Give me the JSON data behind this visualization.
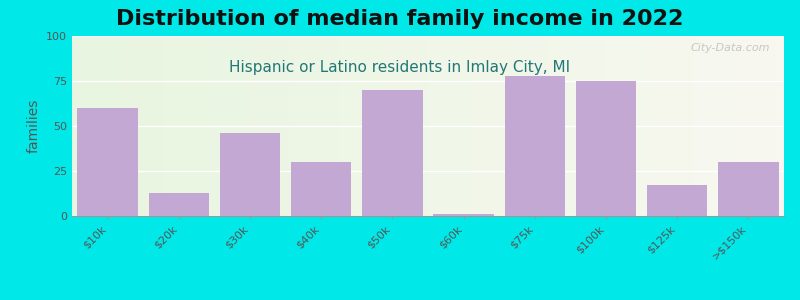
{
  "title": "Distribution of median family income in 2022",
  "subtitle": "Hispanic or Latino residents in Imlay City, MI",
  "ylabel": "families",
  "categories": [
    "$10k",
    "$20k",
    "$30k",
    "$40k",
    "$50k",
    "$60k",
    "$75k",
    "$100k",
    "$125k",
    ">$150k"
  ],
  "values": [
    60,
    13,
    46,
    30,
    70,
    1,
    78,
    75,
    17,
    30
  ],
  "bar_color": "#c4a8d4",
  "background_outer": "#00e8e8",
  "background_plot_left": "#e8f5e0",
  "background_plot_right": "#f5f5ee",
  "ylim": [
    0,
    100
  ],
  "yticks": [
    0,
    25,
    50,
    75,
    100
  ],
  "title_fontsize": 16,
  "subtitle_fontsize": 11,
  "ylabel_fontsize": 10,
  "tick_fontsize": 8,
  "watermark": "City-Data.com"
}
